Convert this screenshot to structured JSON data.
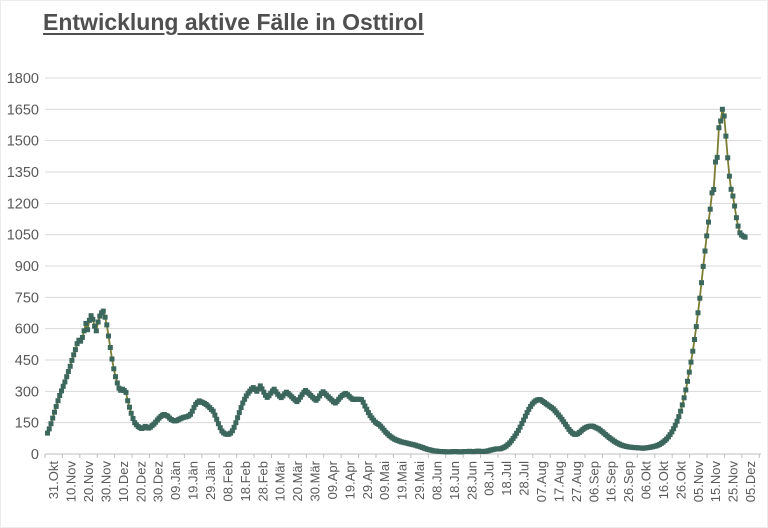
{
  "title": "Entwicklung aktive Fälle in Osttirol",
  "chart_data": {
    "type": "line",
    "title": "Entwicklung aktive Fälle in Osttirol",
    "xlabel": "",
    "ylabel": "",
    "ylim": [
      0,
      1800
    ],
    "y_ticks": [
      0,
      150,
      300,
      450,
      600,
      750,
      900,
      1050,
      1200,
      1350,
      1500,
      1650,
      1800
    ],
    "grid": "horizontal",
    "legend_position": "none",
    "marker": "square",
    "x_tick_interval_days": 10,
    "x_tick_labels": [
      "31.Okt",
      "10.Nov",
      "20.Nov",
      "30.Nov",
      "10.Dez",
      "20.Dez",
      "30.Dez",
      "09.Jän",
      "19.Jän",
      "29.Jän",
      "08.Feb",
      "18.Feb",
      "28.Feb",
      "10.Mär",
      "20.Mär",
      "30.Mär",
      "09.Apr",
      "19.Apr",
      "29.Apr",
      "09.Mai",
      "19.Mai",
      "29.Mai",
      "08.Jun",
      "18.Jun",
      "28.Jun",
      "08.Jul",
      "18.Jul",
      "28.Jul",
      "07.Aug",
      "17.Aug",
      "27.Aug",
      "06.Sep",
      "16.Sep",
      "26.Sep",
      "06.Okt",
      "16.Okt",
      "26.Okt",
      "05.Nov",
      "15.Nov",
      "25.Nov",
      "05.Dez"
    ],
    "series": [
      {
        "name": "aktive Fälle",
        "values": [
          100,
          120,
          145,
          172,
          200,
          228,
          255,
          280,
          302,
          324,
          345,
          370,
          395,
          420,
          448,
          475,
          500,
          528,
          545,
          540,
          558,
          590,
          625,
          595,
          640,
          662,
          645,
          612,
          590,
          632,
          660,
          676,
          684,
          655,
          618,
          565,
          510,
          455,
          408,
          370,
          340,
          315,
          305,
          310,
          304,
          295,
          255,
          224,
          195,
          170,
          150,
          140,
          131,
          126,
          122,
          125,
          132,
          128,
          124,
          129,
          136,
          143,
          152,
          163,
          172,
          180,
          186,
          189,
          185,
          181,
          172,
          165,
          161,
          158,
          160,
          164,
          168,
          172,
          175,
          177,
          179,
          183,
          190,
          205,
          222,
          238,
          247,
          254,
          250,
          246,
          242,
          237,
          230,
          222,
          213,
          205,
          186,
          166,
          145,
          126,
          110,
          101,
          96,
          94,
          95,
          100,
          111,
          128,
          150,
          174,
          198,
          222,
          244,
          262,
          278,
          291,
          301,
          311,
          318,
          309,
          300,
          311,
          326,
          312,
          296,
          281,
          271,
          279,
          291,
          302,
          310,
          298,
          286,
          277,
          270,
          278,
          288,
          296,
          290,
          282,
          274,
          266,
          258,
          251,
          260,
          272,
          284,
          296,
          304,
          296,
          288,
          280,
          272,
          264,
          257,
          266,
          278,
          290,
          298,
          290,
          282,
          274,
          266,
          258,
          250,
          244,
          252,
          262,
          272,
          280,
          286,
          290,
          284,
          276,
          268,
          262,
          261,
          263,
          262,
          262,
          261,
          248,
          230,
          214,
          198,
          184,
          173,
          162,
          152,
          146,
          141,
          133,
          124,
          114,
          104,
          96,
          88,
          82,
          76,
          71,
          67,
          64,
          61,
          58,
          56,
          54,
          52,
          50,
          48,
          46,
          44,
          42,
          39,
          37,
          34,
          31,
          28,
          25,
          22,
          20,
          18,
          16,
          15,
          14,
          13,
          12,
          12,
          11,
          11,
          10,
          10,
          10,
          11,
          12,
          12,
          11,
          10,
          10,
          11,
          12,
          12,
          12,
          13,
          12,
          11,
          12,
          13,
          14,
          13,
          12,
          12,
          13,
          14,
          16,
          18,
          20,
          22,
          24,
          25,
          24,
          26,
          29,
          33,
          38,
          45,
          53,
          63,
          74,
          86,
          99,
          113,
          129,
          146,
          163,
          181,
          198,
          214,
          228,
          240,
          249,
          255,
          259,
          261,
          258,
          252,
          246,
          240,
          234,
          228,
          222,
          216,
          207,
          197,
          187,
          177,
          166,
          154,
          142,
          130,
          118,
          108,
          100,
          95,
          94,
          97,
          103,
          110,
          118,
          124,
          128,
          131,
          133,
          134,
          132,
          128,
          124,
          120,
          114,
          107,
          100,
          93,
          86,
          79,
          73,
          67,
          61,
          56,
          51,
          47,
          43,
          40,
          38,
          36,
          34,
          33,
          32,
          31,
          30,
          30,
          29,
          29,
          28,
          28,
          29,
          30,
          31,
          33,
          35,
          37,
          39,
          42,
          46,
          51,
          57,
          64,
          72,
          82,
          93,
          106,
          121,
          138,
          157,
          179,
          205,
          235,
          269,
          307,
          348,
          392,
          440,
          492,
          548,
          610,
          676,
          746,
          820,
          898,
          972,
          1044,
          1110,
          1172,
          1250,
          1266,
          1398,
          1420,
          1562,
          1594,
          1650,
          1618,
          1522,
          1418,
          1330,
          1267,
          1235,
          1187,
          1131,
          1091,
          1059,
          1048,
          1042,
          1038
        ]
      }
    ],
    "colors": {
      "line": "#7b7d33",
      "marker": "#3c675c",
      "grid": "#d9d9d9",
      "axis": "#bfbfbf",
      "tick_text": "#595959",
      "title_text": "#4f4f4f",
      "background": "#ffffff"
    }
  }
}
